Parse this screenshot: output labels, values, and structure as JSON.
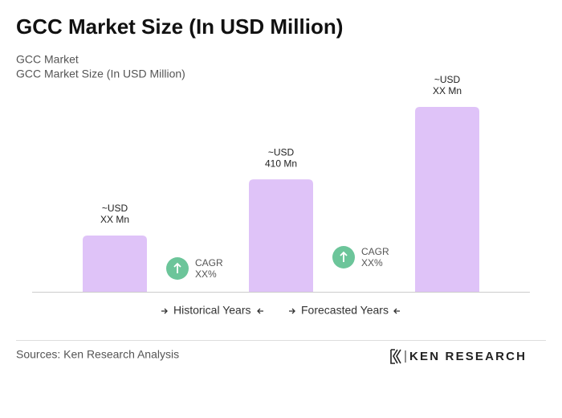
{
  "chart_data": {
    "type": "bar",
    "title": "GCC Market Size (In USD Million)",
    "subtitle": [
      "GCC Market",
      "GCC Market Size (In USD Million)"
    ],
    "values": [
      205,
      410,
      674
    ],
    "value_labels": [
      [
        "~USD",
        "XX Mn"
      ],
      [
        "~USD",
        "410 Mn"
      ],
      [
        "~USD",
        "XX Mn"
      ]
    ],
    "color": "#dfc3f8",
    "annotations": [
      [
        "CAGR",
        "XX%"
      ],
      [
        "CAGR",
        "XX%"
      ]
    ],
    "legend": [
      "Historical Years",
      "Forecasted Years"
    ],
    "source": "Sources: Ken Research Analysis",
    "logo": "KEN RESEARCH"
  }
}
